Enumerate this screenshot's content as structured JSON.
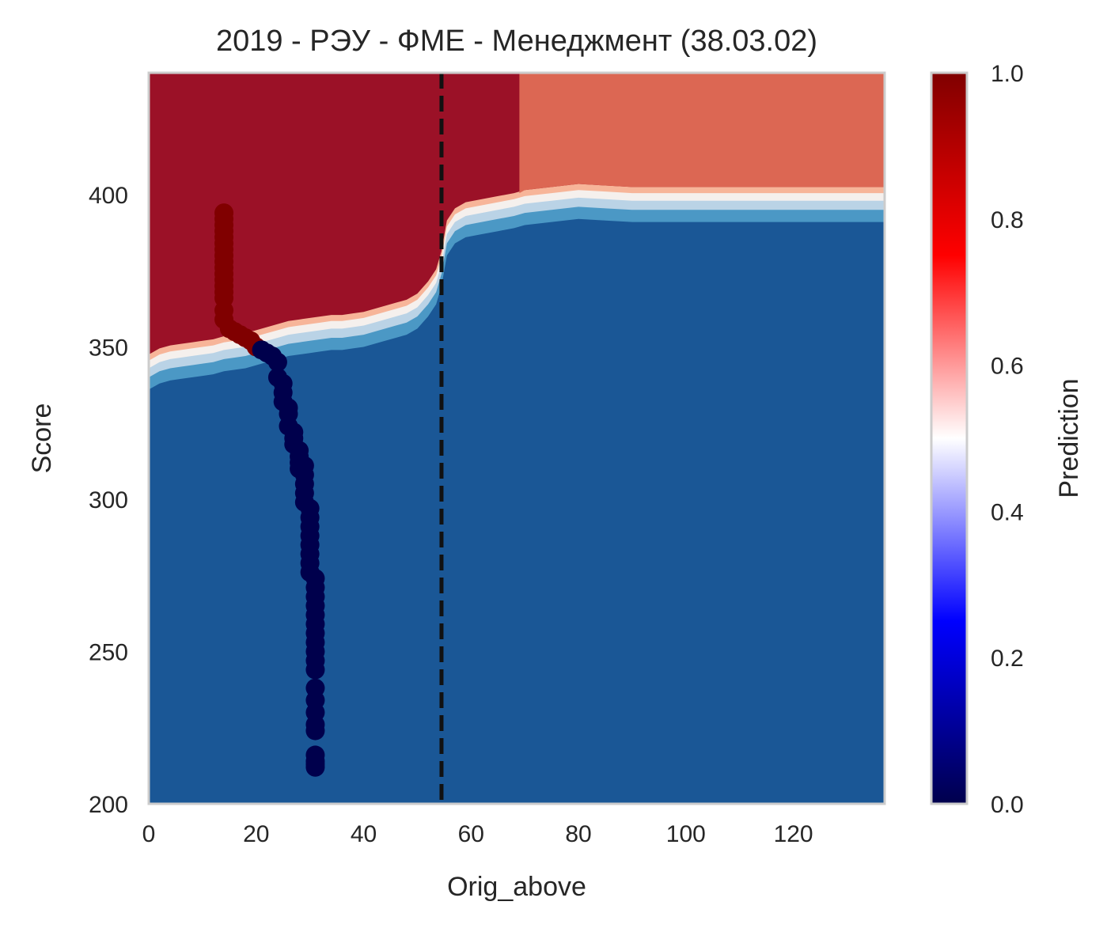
{
  "chart_data": {
    "type": "heatmap",
    "title": "2019 - РЭУ - ФМЕ - Менеджмент (38.03.02)",
    "xlabel": "Orig_above",
    "ylabel": "Score",
    "xlim": [
      0,
      137
    ],
    "ylim": [
      200,
      440
    ],
    "x_ticks": [
      "0",
      "20",
      "40",
      "60",
      "80",
      "100",
      "120"
    ],
    "x_tick_values": [
      0,
      20,
      40,
      60,
      80,
      100,
      120
    ],
    "y_ticks": [
      "200",
      "250",
      "300",
      "350",
      "400"
    ],
    "y_tick_values": [
      200,
      250,
      300,
      350,
      400
    ],
    "grid": false,
    "colormap": "seismic",
    "colorbar": {
      "label": "Prediction",
      "range": [
        0,
        1
      ],
      "ticks": [
        "0.0",
        "0.2",
        "0.4",
        "0.6",
        "0.8",
        "1.0"
      ],
      "tick_values": [
        0,
        0.2,
        0.4,
        0.6,
        0.8,
        1.0
      ]
    },
    "region_colors": {
      "high": "#9b1127",
      "upper_right": "#dc6753",
      "band_1": "#f7b599",
      "band_2": "#f5f0ed",
      "band_3": "#bad3e6",
      "band_4": "#4b98c5",
      "low": "#1a5796"
    },
    "point_colors": {
      "admitted": "#800000",
      "rejected": "#00004c"
    },
    "threshold_line": {
      "x": 54.5,
      "style": "dashed",
      "color": "#111111"
    },
    "boundary": {
      "x": [
        0,
        2,
        4,
        6,
        8,
        10,
        12,
        14,
        16,
        18,
        20,
        22,
        24,
        26,
        28,
        30,
        32,
        34,
        36,
        38,
        40,
        42,
        44,
        46,
        48,
        50,
        52,
        53.5,
        54.5,
        55.5,
        57,
        59,
        62,
        65,
        68,
        70,
        75,
        80,
        85,
        90,
        100,
        110,
        120,
        137
      ],
      "y": [
        344,
        346,
        347,
        347.5,
        348,
        348.5,
        349,
        350,
        350.5,
        351,
        352,
        353,
        354,
        355,
        355.5,
        356,
        356.5,
        357,
        357,
        357.5,
        358,
        359,
        360,
        361,
        362,
        364,
        368,
        372,
        378,
        388,
        392,
        394,
        395,
        396,
        397,
        398,
        399,
        400,
        399.5,
        399,
        399,
        399,
        399,
        399
      ]
    },
    "series": [
      {
        "name": "",
        "class": "admitted",
        "x": [
          14,
          14,
          14,
          14,
          14,
          14,
          14,
          14,
          14,
          14,
          14,
          14,
          14,
          14,
          14,
          14,
          14,
          15,
          16,
          17,
          18,
          19,
          20
        ],
        "y": [
          394,
          392,
          390,
          388,
          386,
          384,
          382,
          380,
          378,
          376,
          374,
          372,
          370,
          368,
          366,
          362,
          359,
          356,
          355,
          354,
          353,
          352,
          350
        ]
      },
      {
        "name": "",
        "class": "rejected",
        "x": [
          21,
          22,
          23,
          24,
          24,
          25,
          25,
          25,
          26,
          26,
          26,
          27,
          27,
          27,
          28,
          28,
          28,
          28,
          29,
          29,
          29,
          29,
          29,
          30,
          30,
          30,
          30,
          30,
          30,
          30,
          30,
          31,
          31,
          31,
          31,
          31,
          31,
          31,
          31,
          31,
          31,
          31,
          31,
          31,
          31,
          31,
          31,
          31,
          31,
          31,
          31
        ],
        "y": [
          349,
          348,
          347,
          345,
          340,
          338,
          335,
          332,
          330,
          328,
          324,
          322,
          320,
          318,
          316,
          314,
          312,
          310,
          311,
          308,
          305,
          302,
          299,
          297,
          294,
          291,
          288,
          285,
          282,
          279,
          276,
          274,
          271,
          268,
          265,
          262,
          259,
          256,
          253,
          250,
          247,
          244,
          238,
          234,
          230,
          226,
          224,
          216,
          214,
          213,
          212
        ]
      }
    ]
  }
}
